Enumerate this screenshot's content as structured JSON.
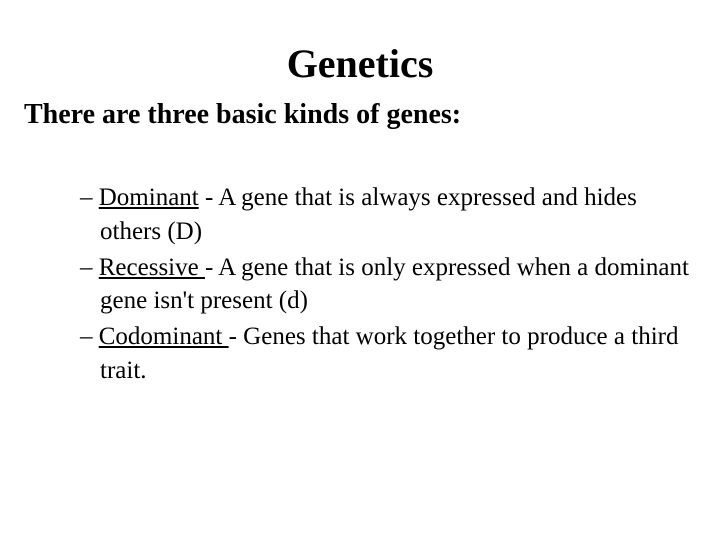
{
  "slide": {
    "title": "Genetics",
    "subtitle": "There are three basic kinds of genes:",
    "title_fontsize": 40,
    "subtitle_fontsize": 28,
    "body_fontsize": 25,
    "background_color": "#ffffff",
    "text_color": "#000000",
    "font_family": "Times New Roman",
    "bullets": [
      {
        "dash": "– ",
        "term": "Dominant",
        "definition": " - A gene that is always expressed and hides others (D)"
      },
      {
        "dash": "– ",
        "term": "Recessive ",
        "definition": "- A gene that is only expressed when a dominant gene isn't present (d)"
      },
      {
        "dash": "– ",
        "term": "Codominant ",
        "definition": "- Genes that work together to produce a third trait."
      }
    ]
  }
}
